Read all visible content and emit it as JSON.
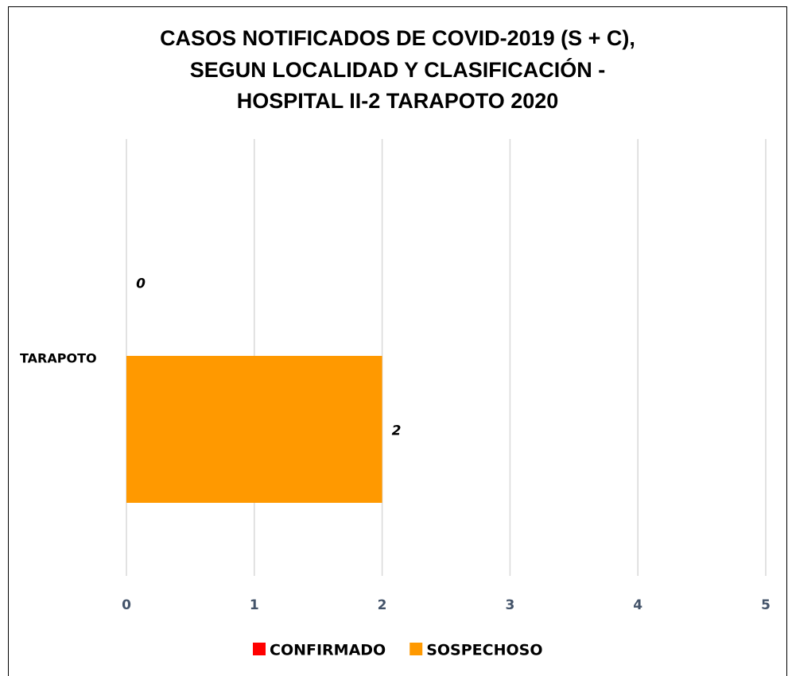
{
  "chart_data": {
    "type": "barh",
    "title": [
      "CASOS NOTIFICADOS DE COVID-2019 (S + C),",
      "SEGUN LOCALIDAD Y CLASIFICACIÓN -",
      "HOSPITAL II-2 TARAPOTO 2020"
    ],
    "categories": [
      "TARAPOTO"
    ],
    "series": [
      {
        "name": "CONFIRMADO",
        "color": "#ff0000",
        "values": [
          0
        ]
      },
      {
        "name": "SOSPECHOSO",
        "color": "#ff9900",
        "values": [
          2
        ]
      }
    ],
    "xlim": [
      0,
      5
    ],
    "xticks": [
      0,
      1,
      2,
      3,
      4,
      5
    ],
    "grid": true,
    "legend": "bottom"
  }
}
